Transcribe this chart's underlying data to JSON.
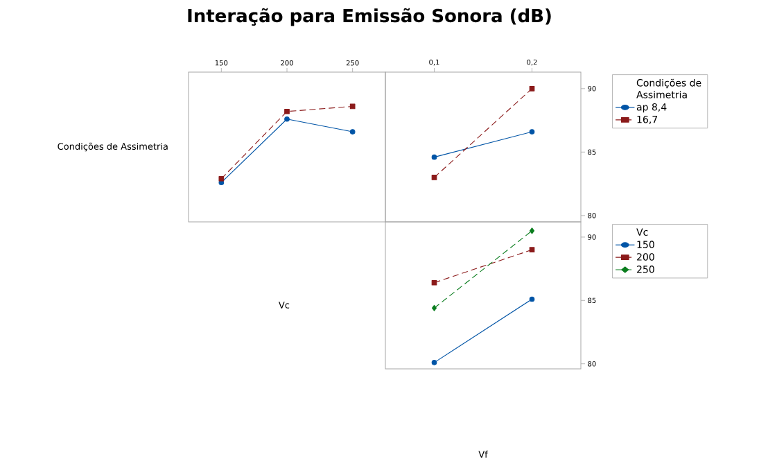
{
  "chart_data": [
    {
      "type": "line",
      "title": "Interação para Emissão Sonora (dB)",
      "ylabel": "Condições de Assimetria",
      "categories": [
        "150",
        "200",
        "250"
      ],
      "ylim": [
        79.5,
        91.3
      ],
      "tick_labels": "x",
      "legend": false,
      "series": [
        {
          "color": "#0054a6",
          "marker": "circle",
          "line_style": "solid",
          "values": [
            82.6,
            87.6,
            86.6
          ]
        },
        {
          "color": "#8b1a1a",
          "marker": "square",
          "line_style": "dashed",
          "values": [
            82.9,
            88.2,
            88.6
          ]
        }
      ]
    },
    {
      "type": "line",
      "categories": [
        "0,1",
        "0,2"
      ],
      "ylim": [
        79.5,
        91.3
      ],
      "yticks": [
        80,
        85,
        90
      ],
      "legend": "right",
      "legend_title": "Condições de Assimetria",
      "series": [
        {
          "name": "ap 8,4",
          "color": "#0054a6",
          "marker": "circle",
          "line_style": "solid",
          "values": [
            84.6,
            86.6
          ]
        },
        {
          "name": "16,7",
          "color": "#8b1a1a",
          "marker": "square",
          "line_style": "dashed",
          "values": [
            83.0,
            90.0
          ]
        }
      ]
    },
    {
      "type": "line",
      "ylabel": "Vc",
      "xlabel": "Vf",
      "categories": [
        "0,1",
        "0,2"
      ],
      "ylim": [
        79.6,
        91.2
      ],
      "yticks": [
        80,
        85,
        90
      ],
      "tick_labels": "y",
      "legend": "right",
      "legend_title": "Vc",
      "series": [
        {
          "name": "150",
          "color": "#0054a6",
          "marker": "circle",
          "line_style": "solid",
          "values": [
            80.1,
            85.1
          ]
        },
        {
          "name": "200",
          "color": "#8b1a1a",
          "marker": "square",
          "line_style": "dashed",
          "values": [
            86.4,
            89.0
          ]
        },
        {
          "name": "250",
          "color": "#0a7d1e",
          "marker": "diamond",
          "line_style": "dashed",
          "values": [
            84.4,
            90.5
          ]
        }
      ]
    }
  ]
}
